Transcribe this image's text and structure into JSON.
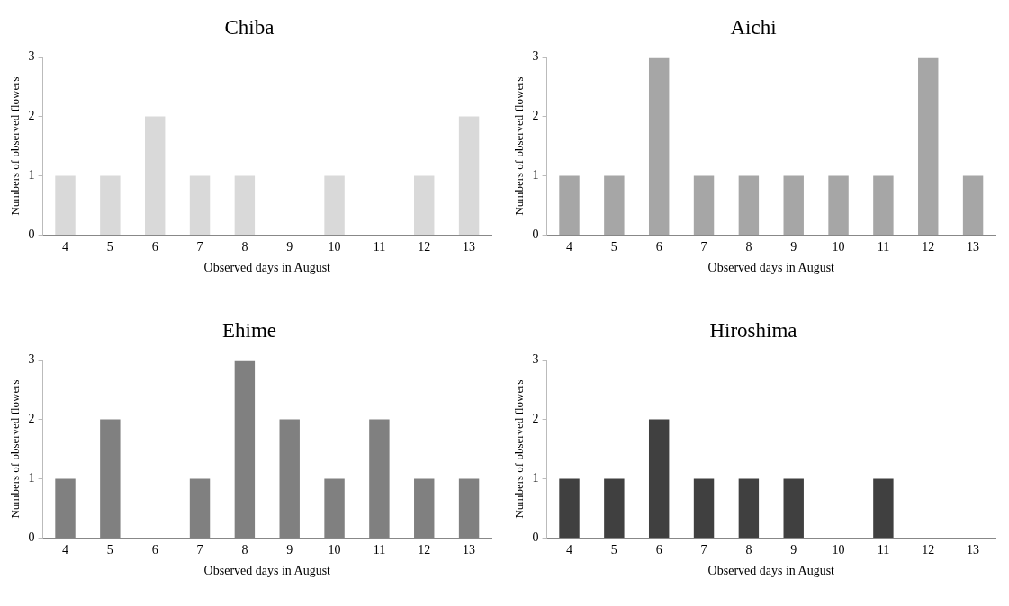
{
  "chart_data": [
    {
      "type": "bar",
      "title": "Chiba",
      "xlabel": "Observed days in August",
      "ylabel": "Numbers of observed flowers",
      "categories": [
        "4",
        "5",
        "6",
        "7",
        "8",
        "9",
        "10",
        "11",
        "12",
        "13"
      ],
      "values": [
        1,
        1,
        2,
        1,
        1,
        0,
        1,
        0,
        1,
        2
      ],
      "color": "#d9d9d9",
      "ylim": [
        0,
        3
      ],
      "yticks": [
        0,
        1,
        2,
        3
      ],
      "grid": false,
      "legend": false
    },
    {
      "type": "bar",
      "title": "Aichi",
      "xlabel": "Observed days in August",
      "ylabel": "Numbers of observed flowers",
      "categories": [
        "4",
        "5",
        "6",
        "7",
        "8",
        "9",
        "10",
        "11",
        "12",
        "13"
      ],
      "values": [
        1,
        1,
        3,
        1,
        1,
        1,
        1,
        1,
        3,
        1
      ],
      "color": "#a6a6a6",
      "ylim": [
        0,
        3
      ],
      "yticks": [
        0,
        1,
        2,
        3
      ],
      "grid": false,
      "legend": false
    },
    {
      "type": "bar",
      "title": "Ehime",
      "xlabel": "Observed days in August",
      "ylabel": "Numbers of observed flowers",
      "categories": [
        "4",
        "5",
        "6",
        "7",
        "8",
        "9",
        "10",
        "11",
        "12",
        "13"
      ],
      "values": [
        1,
        2,
        0,
        1,
        3,
        2,
        1,
        2,
        1,
        1
      ],
      "color": "#808080",
      "ylim": [
        0,
        3
      ],
      "yticks": [
        0,
        1,
        2,
        3
      ],
      "grid": false,
      "legend": false
    },
    {
      "type": "bar",
      "title": "Hiroshima",
      "xlabel": "Observed days in August",
      "ylabel": "Numbers of observed flowers",
      "categories": [
        "4",
        "5",
        "6",
        "7",
        "8",
        "9",
        "10",
        "11",
        "12",
        "13"
      ],
      "values": [
        1,
        1,
        2,
        1,
        1,
        1,
        0,
        1,
        0,
        0
      ],
      "color": "#404040",
      "ylim": [
        0,
        3
      ],
      "yticks": [
        0,
        1,
        2,
        3
      ],
      "grid": false,
      "legend": false
    }
  ]
}
